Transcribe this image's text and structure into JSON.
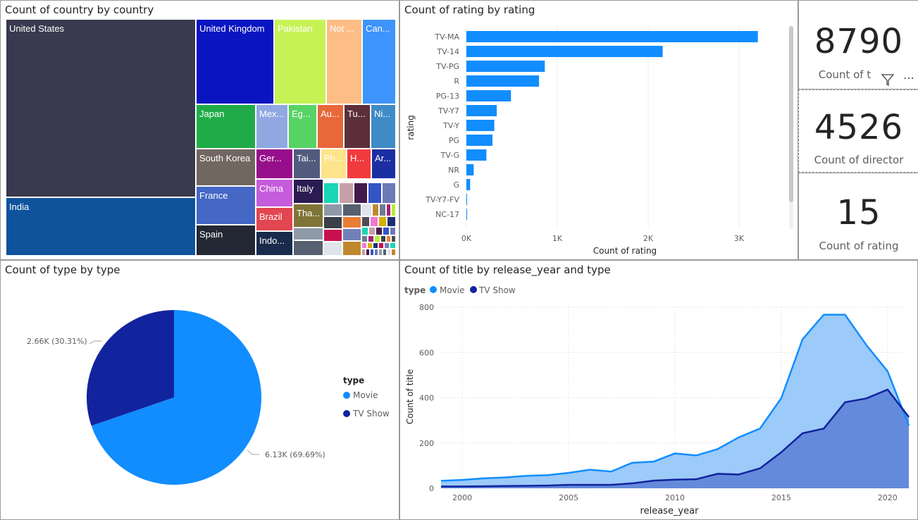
{
  "treemap": {
    "title": "Count of country by country",
    "tiles": [
      {
        "label": "United States",
        "color": "#393a4f"
      },
      {
        "label": "India",
        "color": "#0e539c"
      },
      {
        "label": "United Kingdom",
        "color": "#0a15c2"
      },
      {
        "label": "Pakistan",
        "color": "#c7f255"
      },
      {
        "label": "Not ...",
        "color": "#fdbe85"
      },
      {
        "label": "Can...",
        "color": "#3d94fa"
      },
      {
        "label": "Japan",
        "color": "#1fac48"
      },
      {
        "label": "Mex...",
        "color": "#90a8e2"
      },
      {
        "label": "Eg...",
        "color": "#57d365"
      },
      {
        "label": "Au...",
        "color": "#e8683a"
      },
      {
        "label": "Tu...",
        "color": "#5c2f3a"
      },
      {
        "label": "Ni...",
        "color": "#3e8bc6"
      },
      {
        "label": "South Korea",
        "color": "#716760"
      },
      {
        "label": "Ger...",
        "color": "#960f8a"
      },
      {
        "label": "Tai...",
        "color": "#525b7e"
      },
      {
        "label": "Ph...",
        "color": "#fde48b"
      },
      {
        "label": "H...",
        "color": "#f13a3e"
      },
      {
        "label": "Ar...",
        "color": "#1b2ea2"
      },
      {
        "label": "France",
        "color": "#4567c6"
      },
      {
        "label": "China",
        "color": "#c45cdb"
      },
      {
        "label": "Italy",
        "color": "#2a1b52"
      },
      {
        "label": "Spain",
        "color": "#232834"
      },
      {
        "label": "Brazil",
        "color": "#e24650"
      },
      {
        "label": "Tha...",
        "color": "#807437"
      },
      {
        "label": "Indo...",
        "color": "#192b4c"
      }
    ]
  },
  "bar": {
    "title": "Count of rating by rating",
    "ylabel": "rating",
    "xlabel": "Count of rating",
    "xticks": [
      "0K",
      "1K",
      "2K",
      "3K"
    ],
    "color": "#118dff"
  },
  "cards": [
    {
      "value": "8790",
      "label": "Count of t"
    },
    {
      "value": "4526",
      "label": "Count of director"
    },
    {
      "value": "15",
      "label": "Count of rating"
    }
  ],
  "pie": {
    "title": "Count of type by type",
    "legend_title": "type",
    "slices": [
      {
        "name": "Movie",
        "label": "6.13K (69.69%)",
        "color": "#118dff"
      },
      {
        "name": "TV Show",
        "label": "2.66K (30.31%)",
        "color": "#12239e"
      }
    ]
  },
  "area": {
    "title": "Count of title by release_year and type",
    "legend_title": "type",
    "xlabel": "release_year",
    "ylabel": "Count of title",
    "xticks": [
      "2000",
      "2005",
      "2010",
      "2015",
      "2020"
    ],
    "yticks": [
      "0",
      "200",
      "400",
      "600",
      "800"
    ]
  },
  "chart_data": [
    {
      "type": "bar",
      "title": "Count of rating by rating",
      "xlabel": "Count of rating",
      "ylabel": "rating",
      "categories": [
        "TV-MA",
        "TV-14",
        "TV-PG",
        "R",
        "PG-13",
        "TV-Y7",
        "TV-Y",
        "PG",
        "TV-G",
        "NR",
        "G",
        "TV-Y7-FV",
        "NC-17"
      ],
      "values": [
        3207,
        2160,
        863,
        799,
        490,
        334,
        307,
        287,
        220,
        80,
        41,
        6,
        3
      ],
      "xlim": [
        0,
        3500
      ]
    },
    {
      "type": "pie",
      "title": "Count of type by type",
      "categories": [
        "Movie",
        "TV Show"
      ],
      "values": [
        6130,
        2660
      ],
      "percent": [
        69.69,
        30.31
      ]
    },
    {
      "type": "area",
      "title": "Count of title by release_year and type",
      "xlabel": "release_year",
      "ylabel": "Count of title",
      "ylim": [
        0,
        800
      ],
      "x": [
        1999,
        2000,
        2001,
        2002,
        2003,
        2004,
        2005,
        2006,
        2007,
        2008,
        2009,
        2010,
        2011,
        2012,
        2013,
        2014,
        2015,
        2016,
        2017,
        2018,
        2019,
        2020,
        2021
      ],
      "series": [
        {
          "name": "Movie",
          "color": "#118dff",
          "values": [
            33,
            37,
            44,
            48,
            55,
            58,
            68,
            82,
            74,
            113,
            118,
            154,
            145,
            173,
            225,
            264,
            398,
            658,
            767,
            767,
            633,
            517,
            277
          ]
        },
        {
          "name": "TV Show",
          "color": "#12239e",
          "values": [
            8,
            8,
            9,
            10,
            11,
            12,
            15,
            15,
            15,
            22,
            34,
            38,
            40,
            64,
            61,
            88,
            159,
            243,
            264,
            380,
            397,
            436,
            315
          ]
        }
      ]
    },
    {
      "type": "treemap",
      "title": "Count of country by country",
      "categories": [
        "United States",
        "India",
        "United Kingdom",
        "Pakistan",
        "Not ...",
        "Can...",
        "Japan",
        "Mex...",
        "Eg...",
        "Au...",
        "Tu...",
        "Ni...",
        "South Korea",
        "Ger...",
        "Tai...",
        "Ph...",
        "H...",
        "Ar...",
        "France",
        "China",
        "Italy",
        "Spain",
        "Brazil",
        "Tha...",
        "Indo..."
      ]
    }
  ]
}
